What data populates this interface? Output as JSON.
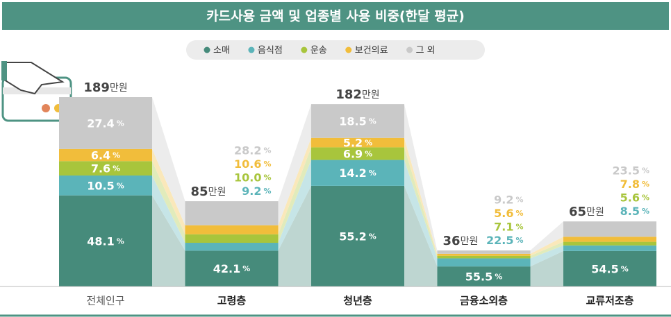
{
  "chart_data": {
    "type": "bar",
    "title": "카드사용 금액 및 업종별 사용 비중(한달 평균)",
    "categories": [
      "전체인구",
      "고령층",
      "청년층",
      "금융소외층",
      "교류저조층"
    ],
    "totals": [
      189,
      85,
      182,
      36,
      65
    ],
    "total_unit": "만원",
    "percent_unit": "%",
    "series": [
      {
        "name": "소매",
        "color": "#468b7b",
        "values": [
          48.1,
          42.1,
          55.2,
          55.5,
          54.5
        ],
        "value_labels": [
          "48.1",
          "42.1",
          "55.2",
          "55.5",
          "54.5"
        ]
      },
      {
        "name": "음식점",
        "color": "#5bb4b9",
        "values": [
          10.5,
          9.2,
          14.2,
          22.5,
          8.5
        ],
        "value_labels": [
          "10.5",
          "9.2",
          "14.2",
          "22.5",
          "8.5"
        ]
      },
      {
        "name": "운송",
        "color": "#a8c53c",
        "values": [
          7.6,
          10.0,
          6.9,
          7.1,
          5.6
        ],
        "value_labels": [
          "7.6",
          "10.0",
          "6.9",
          "7.1",
          "5.6"
        ]
      },
      {
        "name": "보건의료",
        "color": "#f1bd3b",
        "values": [
          6.4,
          10.6,
          5.2,
          5.6,
          7.8
        ],
        "value_labels": [
          "6.4",
          "10.6",
          "5.2",
          "5.6",
          "7.8"
        ]
      },
      {
        "name": "그 외",
        "color": "#c9c9c9",
        "values": [
          27.4,
          28.2,
          18.5,
          9.2,
          23.5
        ],
        "value_labels": [
          "27.4",
          "28.2",
          "18.5",
          "9.2",
          "23.5"
        ]
      }
    ]
  }
}
